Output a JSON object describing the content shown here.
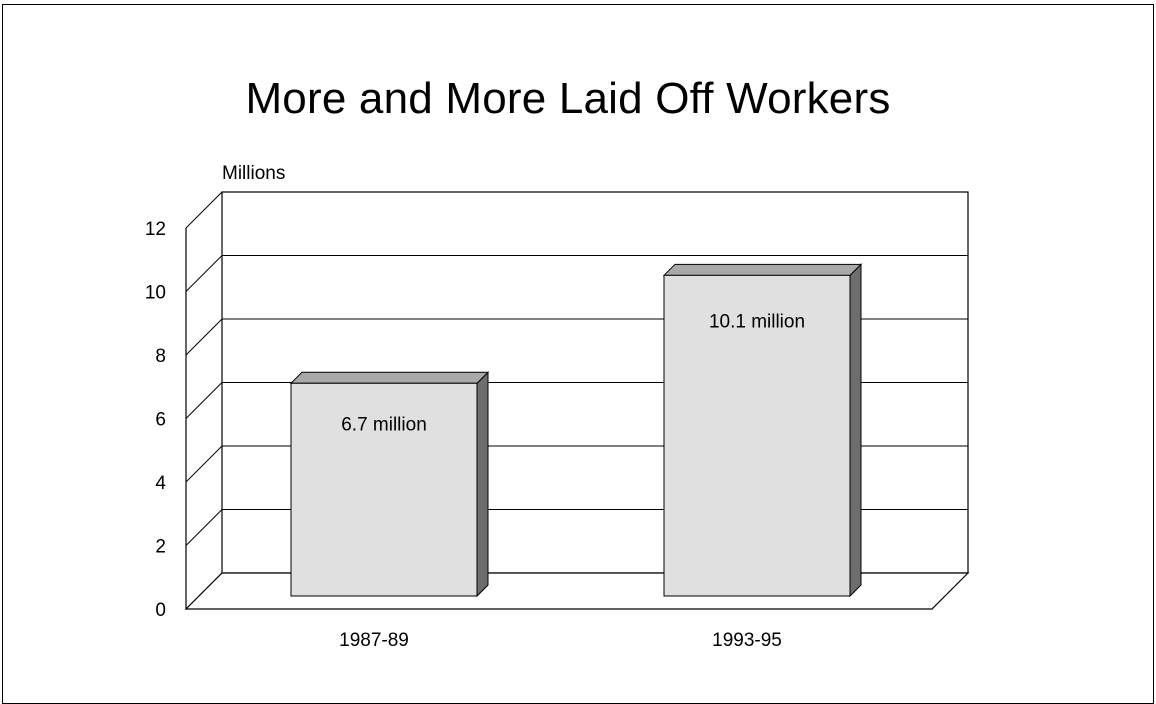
{
  "title": "More and More Laid Off Workers",
  "chart_data": {
    "type": "bar",
    "title": "More and More Laid Off Workers",
    "ylabel": "Millions",
    "xlabel": "",
    "categories": [
      "1987-89",
      "1993-95"
    ],
    "values": [
      6.7,
      10.1
    ],
    "data_labels": [
      "6.7 million",
      "10.1 million"
    ],
    "ylim": [
      0,
      12
    ],
    "yticks": [
      0,
      2,
      4,
      6,
      8,
      10,
      12
    ],
    "grid": true,
    "style": "3d",
    "colors": {
      "bar_front": "#e0e0e0",
      "bar_side": "#6e6e6e",
      "bar_top": "#a9a9a9",
      "axis": "#000000",
      "background": "#ffffff"
    }
  }
}
